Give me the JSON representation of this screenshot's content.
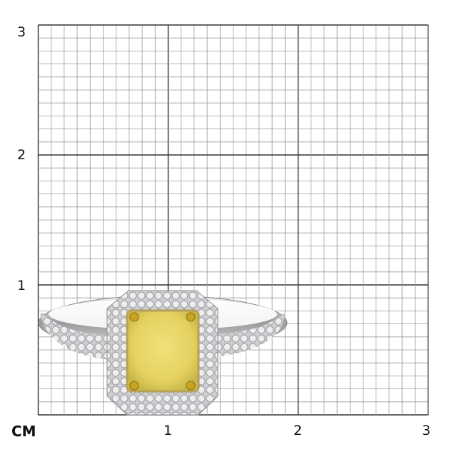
{
  "scale": {
    "unit_label": "CM",
    "x_ticks": [
      "1",
      "2",
      "3"
    ],
    "y_ticks": [
      "1",
      "2",
      "3"
    ],
    "range_cm": [
      0,
      3
    ],
    "minor_divisions_per_cm": 10
  },
  "product": {
    "subject": "ring",
    "colors": {
      "center_stone": "#e9d870",
      "prongs": "#c9a420",
      "metal": "#d8d8da",
      "halo": "#c8c8cc"
    }
  }
}
